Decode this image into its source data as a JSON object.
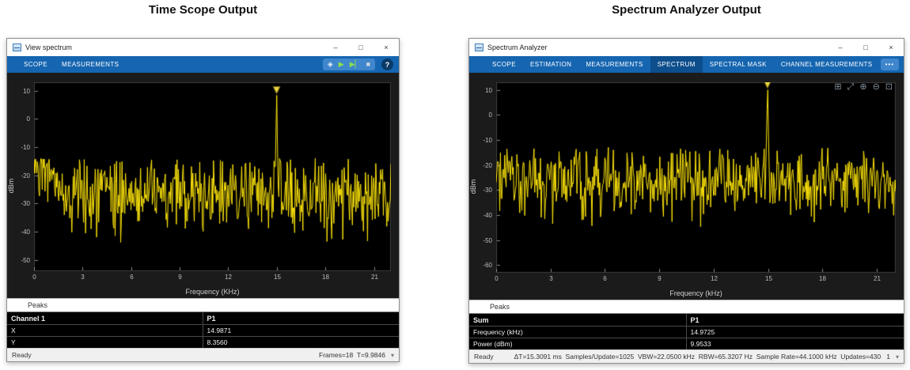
{
  "headings": {
    "left": "Time Scope Output",
    "right": "Spectrum Analyzer Output"
  },
  "left_window": {
    "title": "View spectrum",
    "window_controls": {
      "minimize": "–",
      "maximize": "□",
      "close": "×"
    },
    "toolbar": {
      "tabs": [
        {
          "label": "SCOPE"
        },
        {
          "label": "MEASUREMENTS"
        }
      ],
      "icons": [
        {
          "name": "highlight-icon",
          "glyph": "◈"
        },
        {
          "name": "run-icon",
          "glyph": "▶"
        },
        {
          "name": "step-forward-icon",
          "glyph": "▶▏"
        },
        {
          "name": "stop-icon",
          "glyph": "■"
        }
      ],
      "help_label": "?"
    },
    "peaks_panel": {
      "label": "Peaks",
      "table": {
        "header": [
          "Channel 1",
          "P1"
        ],
        "rows": [
          [
            "X",
            "14.9871"
          ],
          [
            "Y",
            "8.3560"
          ]
        ]
      }
    },
    "status": {
      "ready": "Ready",
      "info": "Frames=18  T=9.9846",
      "icon": "▾"
    }
  },
  "right_window": {
    "title": "Spectrum Analyzer",
    "window_controls": {
      "minimize": "–",
      "maximize": "□",
      "close": "×"
    },
    "toolbar": {
      "tabs": [
        {
          "label": "SCOPE"
        },
        {
          "label": "ESTIMATION"
        },
        {
          "label": "MEASUREMENTS"
        },
        {
          "label": "SPECTRUM",
          "active": true
        },
        {
          "label": "SPECTRAL MASK"
        },
        {
          "label": "CHANNEL MEASUREMENTS"
        }
      ],
      "overflow": "•••"
    },
    "zoom_tools": [
      {
        "name": "zoom-select-icon",
        "glyph": "⊞"
      },
      {
        "name": "pan-icon",
        "glyph": "⤢"
      },
      {
        "name": "zoom-in-icon",
        "glyph": "⊕"
      },
      {
        "name": "zoom-out-icon",
        "glyph": "⊖"
      },
      {
        "name": "zoom-fit-icon",
        "glyph": "⊡"
      }
    ],
    "peaks_panel": {
      "label": "Peaks",
      "table": {
        "header": [
          "Sum",
          "P1"
        ],
        "rows": [
          [
            "Frequency (kHz)",
            "14.9725"
          ],
          [
            "Power (dBm)",
            "9.9533"
          ]
        ]
      }
    },
    "status": {
      "ready": "Ready",
      "info": "ΔT=15.3091 ms  Samples/Update=1025  VBW=22.0500 kHz  RBW=65.3207 Hz  Sample Rate=44.1000 kHz  Updates=430",
      "extra": "1",
      "icon": "▾"
    }
  },
  "colors": {
    "toolbar_blue": "#1565b0",
    "active_tab_blue": "#0d4e8c",
    "trace_yellow": "#ffe60a",
    "plot_margin_bg": "#1b1b1b",
    "axes_bg": "#000000",
    "peak_marker_fill": "#e8d53f"
  },
  "chart_data": [
    {
      "type": "line",
      "window": "View spectrum",
      "series": [
        {
          "name": "Channel 1",
          "color": "#ffe60a"
        }
      ],
      "xlabel": "Frequency (KHz)",
      "ylabel": "dBm",
      "xlim": [
        0,
        22.05
      ],
      "ylim": [
        -54,
        13
      ],
      "x_ticks": [
        0,
        3,
        6,
        9,
        12,
        15,
        18,
        21
      ],
      "y_ticks": [
        10,
        0,
        -10,
        -20,
        -30,
        -40,
        -50
      ],
      "grid": false,
      "legend": "none",
      "peak": {
        "x": 14.9871,
        "y": 8.356,
        "marker": "triangle-down"
      },
      "noise": {
        "floor_mean_dbm": -27,
        "floor_std_db": 6.5,
        "low_freq_bump_db": 13,
        "ceiling_dbm": -14,
        "points": 520
      }
    },
    {
      "type": "line",
      "window": "Spectrum Analyzer",
      "series": [
        {
          "name": "Sum",
          "color": "#ffe60a"
        }
      ],
      "xlabel": "Frequency (kHz)",
      "ylabel": "dBm",
      "xlim": [
        0,
        22.05
      ],
      "ylim": [
        -63,
        13
      ],
      "x_ticks": [
        0,
        3,
        6,
        9,
        12,
        15,
        18,
        21
      ],
      "y_ticks": [
        10,
        0,
        -10,
        -20,
        -30,
        -40,
        -50,
        -60
      ],
      "grid": false,
      "legend": "none",
      "peak": {
        "x": 14.9725,
        "y": 9.9533,
        "marker": "triangle-down"
      },
      "noise": {
        "floor_mean_dbm": -27,
        "floor_std_db": 7,
        "low_freq_bump_db": 7,
        "ceiling_dbm": -13,
        "points": 560
      }
    }
  ]
}
